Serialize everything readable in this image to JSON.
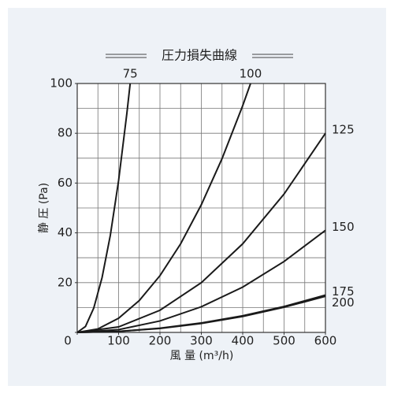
{
  "chart_data": {
    "type": "line",
    "title": "圧力損失曲線",
    "xlabel": "風 量 (m³/h)",
    "ylabel": "静 圧 (Pa)",
    "xlim": [
      0,
      600
    ],
    "ylim": [
      0,
      100
    ],
    "xticks": [
      0,
      100,
      200,
      300,
      400,
      500,
      600
    ],
    "yticks": [
      0,
      20,
      40,
      60,
      80,
      100
    ],
    "xgrid": [
      50,
      100,
      150,
      200,
      250,
      300,
      350,
      400,
      450,
      500,
      550
    ],
    "ygrid": [
      10,
      20,
      30,
      40,
      50,
      60,
      70,
      80,
      90
    ],
    "grid": true,
    "color": "#1a1a1a",
    "series": [
      {
        "name": "75",
        "x": [
          0,
          20,
          40,
          60,
          80,
          100,
          120,
          128
        ],
        "values": [
          0,
          2.4,
          9.8,
          22,
          39,
          61,
          88,
          100
        ]
      },
      {
        "name": "100",
        "x": [
          0,
          50,
          100,
          150,
          200,
          250,
          300,
          350,
          400,
          419
        ],
        "values": [
          0,
          1.4,
          5.7,
          12.8,
          22.8,
          35.6,
          51.3,
          69.8,
          91.1,
          100
        ]
      },
      {
        "name": "125",
        "x": [
          0,
          100,
          200,
          300,
          400,
          500,
          600
        ],
        "values": [
          0,
          2.2,
          8.9,
          20,
          35.6,
          55.6,
          80
        ]
      },
      {
        "name": "150",
        "x": [
          0,
          100,
          200,
          300,
          400,
          500,
          600
        ],
        "values": [
          0,
          1.1,
          4.6,
          10.3,
          18.2,
          28.5,
          41
        ]
      },
      {
        "name": "175",
        "x": [
          0,
          100,
          200,
          300,
          400,
          500,
          600
        ],
        "values": [
          0,
          0.4,
          1.7,
          3.8,
          6.7,
          10.4,
          15
        ]
      },
      {
        "name": "200",
        "x": [
          0,
          100,
          200,
          300,
          400,
          500,
          600
        ],
        "values": [
          0,
          0.4,
          1.6,
          3.6,
          6.4,
          10.1,
          14.5
        ]
      }
    ]
  }
}
